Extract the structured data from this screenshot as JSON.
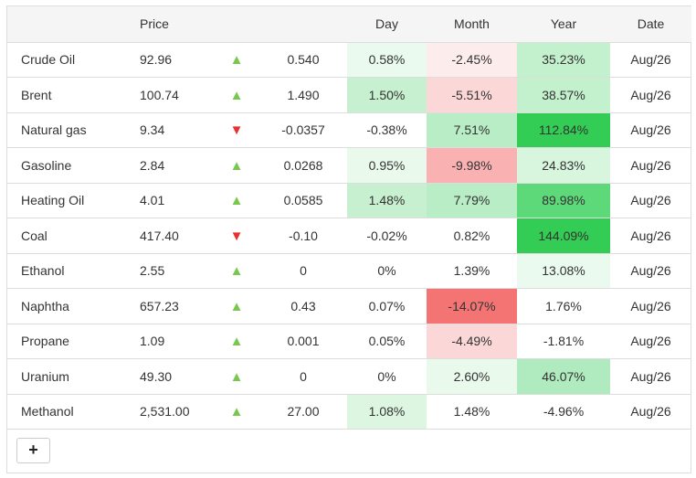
{
  "colors": {
    "up": "#78c850",
    "down": "#e83030"
  },
  "table": {
    "headers": [
      "",
      "Price",
      "",
      "",
      "Day",
      "Month",
      "Year",
      "Date"
    ],
    "rows": [
      {
        "name": "Crude Oil",
        "price": "92.96",
        "direction": "up",
        "change": "0.540",
        "day": {
          "text": "0.58%",
          "bg": "#eafaee"
        },
        "month": {
          "text": "-2.45%",
          "bg": "#fdecec"
        },
        "year": {
          "text": "35.23%",
          "bg": "#c3f0cd"
        },
        "date": "Aug/26"
      },
      {
        "name": "Brent",
        "price": "100.74",
        "direction": "up",
        "change": "1.490",
        "day": {
          "text": "1.50%",
          "bg": "#c6f0cf"
        },
        "month": {
          "text": "-5.51%",
          "bg": "#fbd7d7"
        },
        "year": {
          "text": "38.57%",
          "bg": "#c3f0cd"
        },
        "date": "Aug/26"
      },
      {
        "name": "Natural gas",
        "price": "9.34",
        "direction": "down",
        "change": "-0.0357",
        "day": {
          "text": "-0.38%",
          "bg": ""
        },
        "month": {
          "text": "7.51%",
          "bg": "#b9edc5"
        },
        "year": {
          "text": "112.84%",
          "bg": "#33cc55"
        },
        "date": "Aug/26"
      },
      {
        "name": "Gasoline",
        "price": "2.84",
        "direction": "up",
        "change": "0.0268",
        "day": {
          "text": "0.95%",
          "bg": "#e9f9ec"
        },
        "month": {
          "text": "-9.98%",
          "bg": "#f9b1b1"
        },
        "year": {
          "text": "24.83%",
          "bg": "#d8f5de"
        },
        "date": "Aug/26"
      },
      {
        "name": "Heating Oil",
        "price": "4.01",
        "direction": "up",
        "change": "0.0585",
        "day": {
          "text": "1.48%",
          "bg": "#c6f0cf"
        },
        "month": {
          "text": "7.79%",
          "bg": "#b9edc5"
        },
        "year": {
          "text": "89.98%",
          "bg": "#5ed97a"
        },
        "date": "Aug/26"
      },
      {
        "name": "Coal",
        "price": "417.40",
        "direction": "down",
        "change": "-0.10",
        "day": {
          "text": "-0.02%",
          "bg": ""
        },
        "month": {
          "text": "0.82%",
          "bg": ""
        },
        "year": {
          "text": "144.09%",
          "bg": "#33cc55"
        },
        "date": "Aug/26"
      },
      {
        "name": "Ethanol",
        "price": "2.55",
        "direction": "up",
        "change": "0",
        "day": {
          "text": "0%",
          "bg": ""
        },
        "month": {
          "text": "1.39%",
          "bg": ""
        },
        "year": {
          "text": "13.08%",
          "bg": "#eafaee"
        },
        "date": "Aug/26"
      },
      {
        "name": "Naphtha",
        "price": "657.23",
        "direction": "up",
        "change": "0.43",
        "day": {
          "text": "0.07%",
          "bg": ""
        },
        "month": {
          "text": "-14.07%",
          "bg": "#f47474"
        },
        "year": {
          "text": "1.76%",
          "bg": ""
        },
        "date": "Aug/26"
      },
      {
        "name": "Propane",
        "price": "1.09",
        "direction": "up",
        "change": "0.001",
        "day": {
          "text": "0.05%",
          "bg": ""
        },
        "month": {
          "text": "-4.49%",
          "bg": "#fbd7d7"
        },
        "year": {
          "text": "-1.81%",
          "bg": ""
        },
        "date": "Aug/26"
      },
      {
        "name": "Uranium",
        "price": "49.30",
        "direction": "up",
        "change": "0",
        "day": {
          "text": "0%",
          "bg": ""
        },
        "month": {
          "text": "2.60%",
          "bg": "#e9f9ec"
        },
        "year": {
          "text": "46.07%",
          "bg": "#afebbe"
        },
        "date": "Aug/26"
      },
      {
        "name": "Methanol",
        "price": "2,531.00",
        "direction": "up",
        "change": "27.00",
        "day": {
          "text": "1.08%",
          "bg": "#dcf6e2"
        },
        "month": {
          "text": "1.48%",
          "bg": ""
        },
        "year": {
          "text": "-4.96%",
          "bg": ""
        },
        "date": "Aug/26"
      }
    ]
  },
  "add_button": {
    "label": "+"
  }
}
